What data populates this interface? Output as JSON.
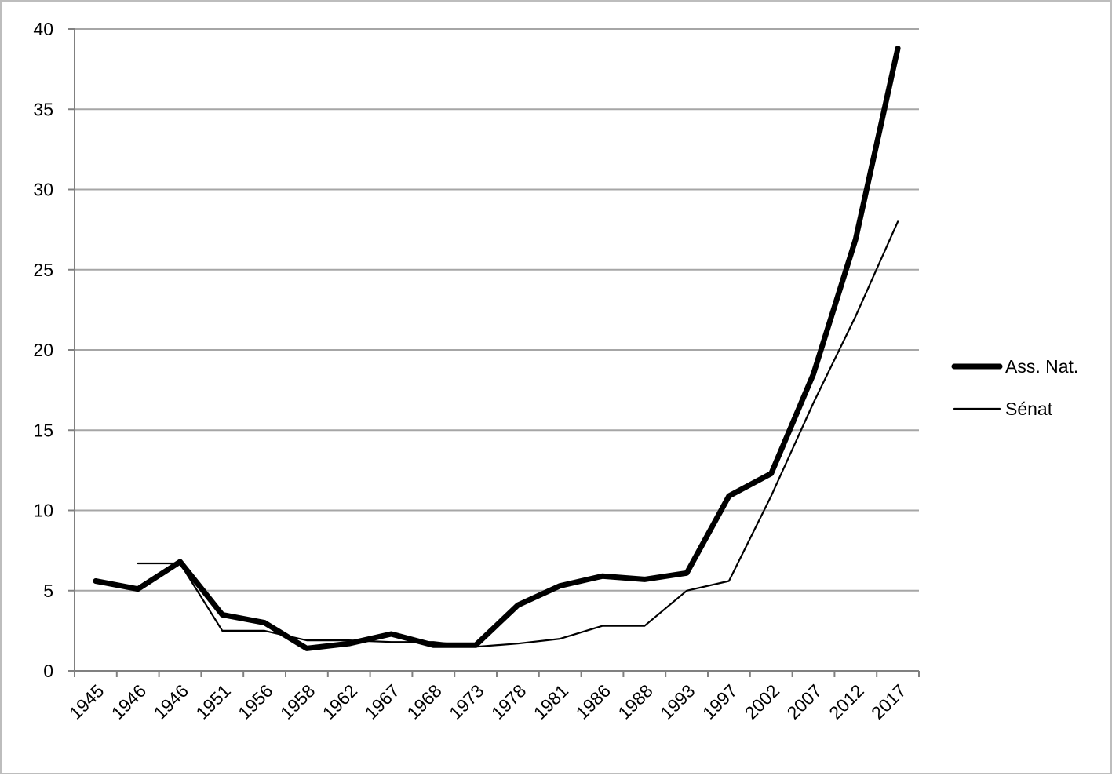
{
  "chart_data": {
    "type": "line",
    "title": "",
    "xlabel": "",
    "ylabel": "",
    "categories": [
      "1945",
      "1946",
      "1946",
      "1951",
      "1956",
      "1958",
      "1962",
      "1967",
      "1968",
      "1973",
      "1978",
      "1981",
      "1986",
      "1988",
      "1993",
      "1997",
      "2002",
      "2007",
      "2012",
      "2017"
    ],
    "ylim": [
      0,
      40
    ],
    "yticks": [
      0,
      5,
      10,
      15,
      20,
      25,
      30,
      35,
      40
    ],
    "grid": "horizontal",
    "legend_position": "right",
    "series": [
      {
        "name": "Ass. Nat.",
        "color": "#000000",
        "style": "thick",
        "values": [
          5.6,
          5.1,
          6.8,
          3.5,
          3.0,
          1.4,
          1.7,
          2.3,
          1.6,
          1.6,
          4.1,
          5.3,
          5.9,
          5.7,
          6.1,
          10.9,
          12.3,
          18.5,
          26.9,
          38.8
        ]
      },
      {
        "name": "Sénat",
        "color": "#000000",
        "style": "thin",
        "values": [
          null,
          6.7,
          6.7,
          2.5,
          2.5,
          1.9,
          1.9,
          1.8,
          1.8,
          1.5,
          1.7,
          2.0,
          2.8,
          2.8,
          5.0,
          5.6,
          10.9,
          16.7,
          22.1,
          28.0
        ]
      }
    ]
  }
}
